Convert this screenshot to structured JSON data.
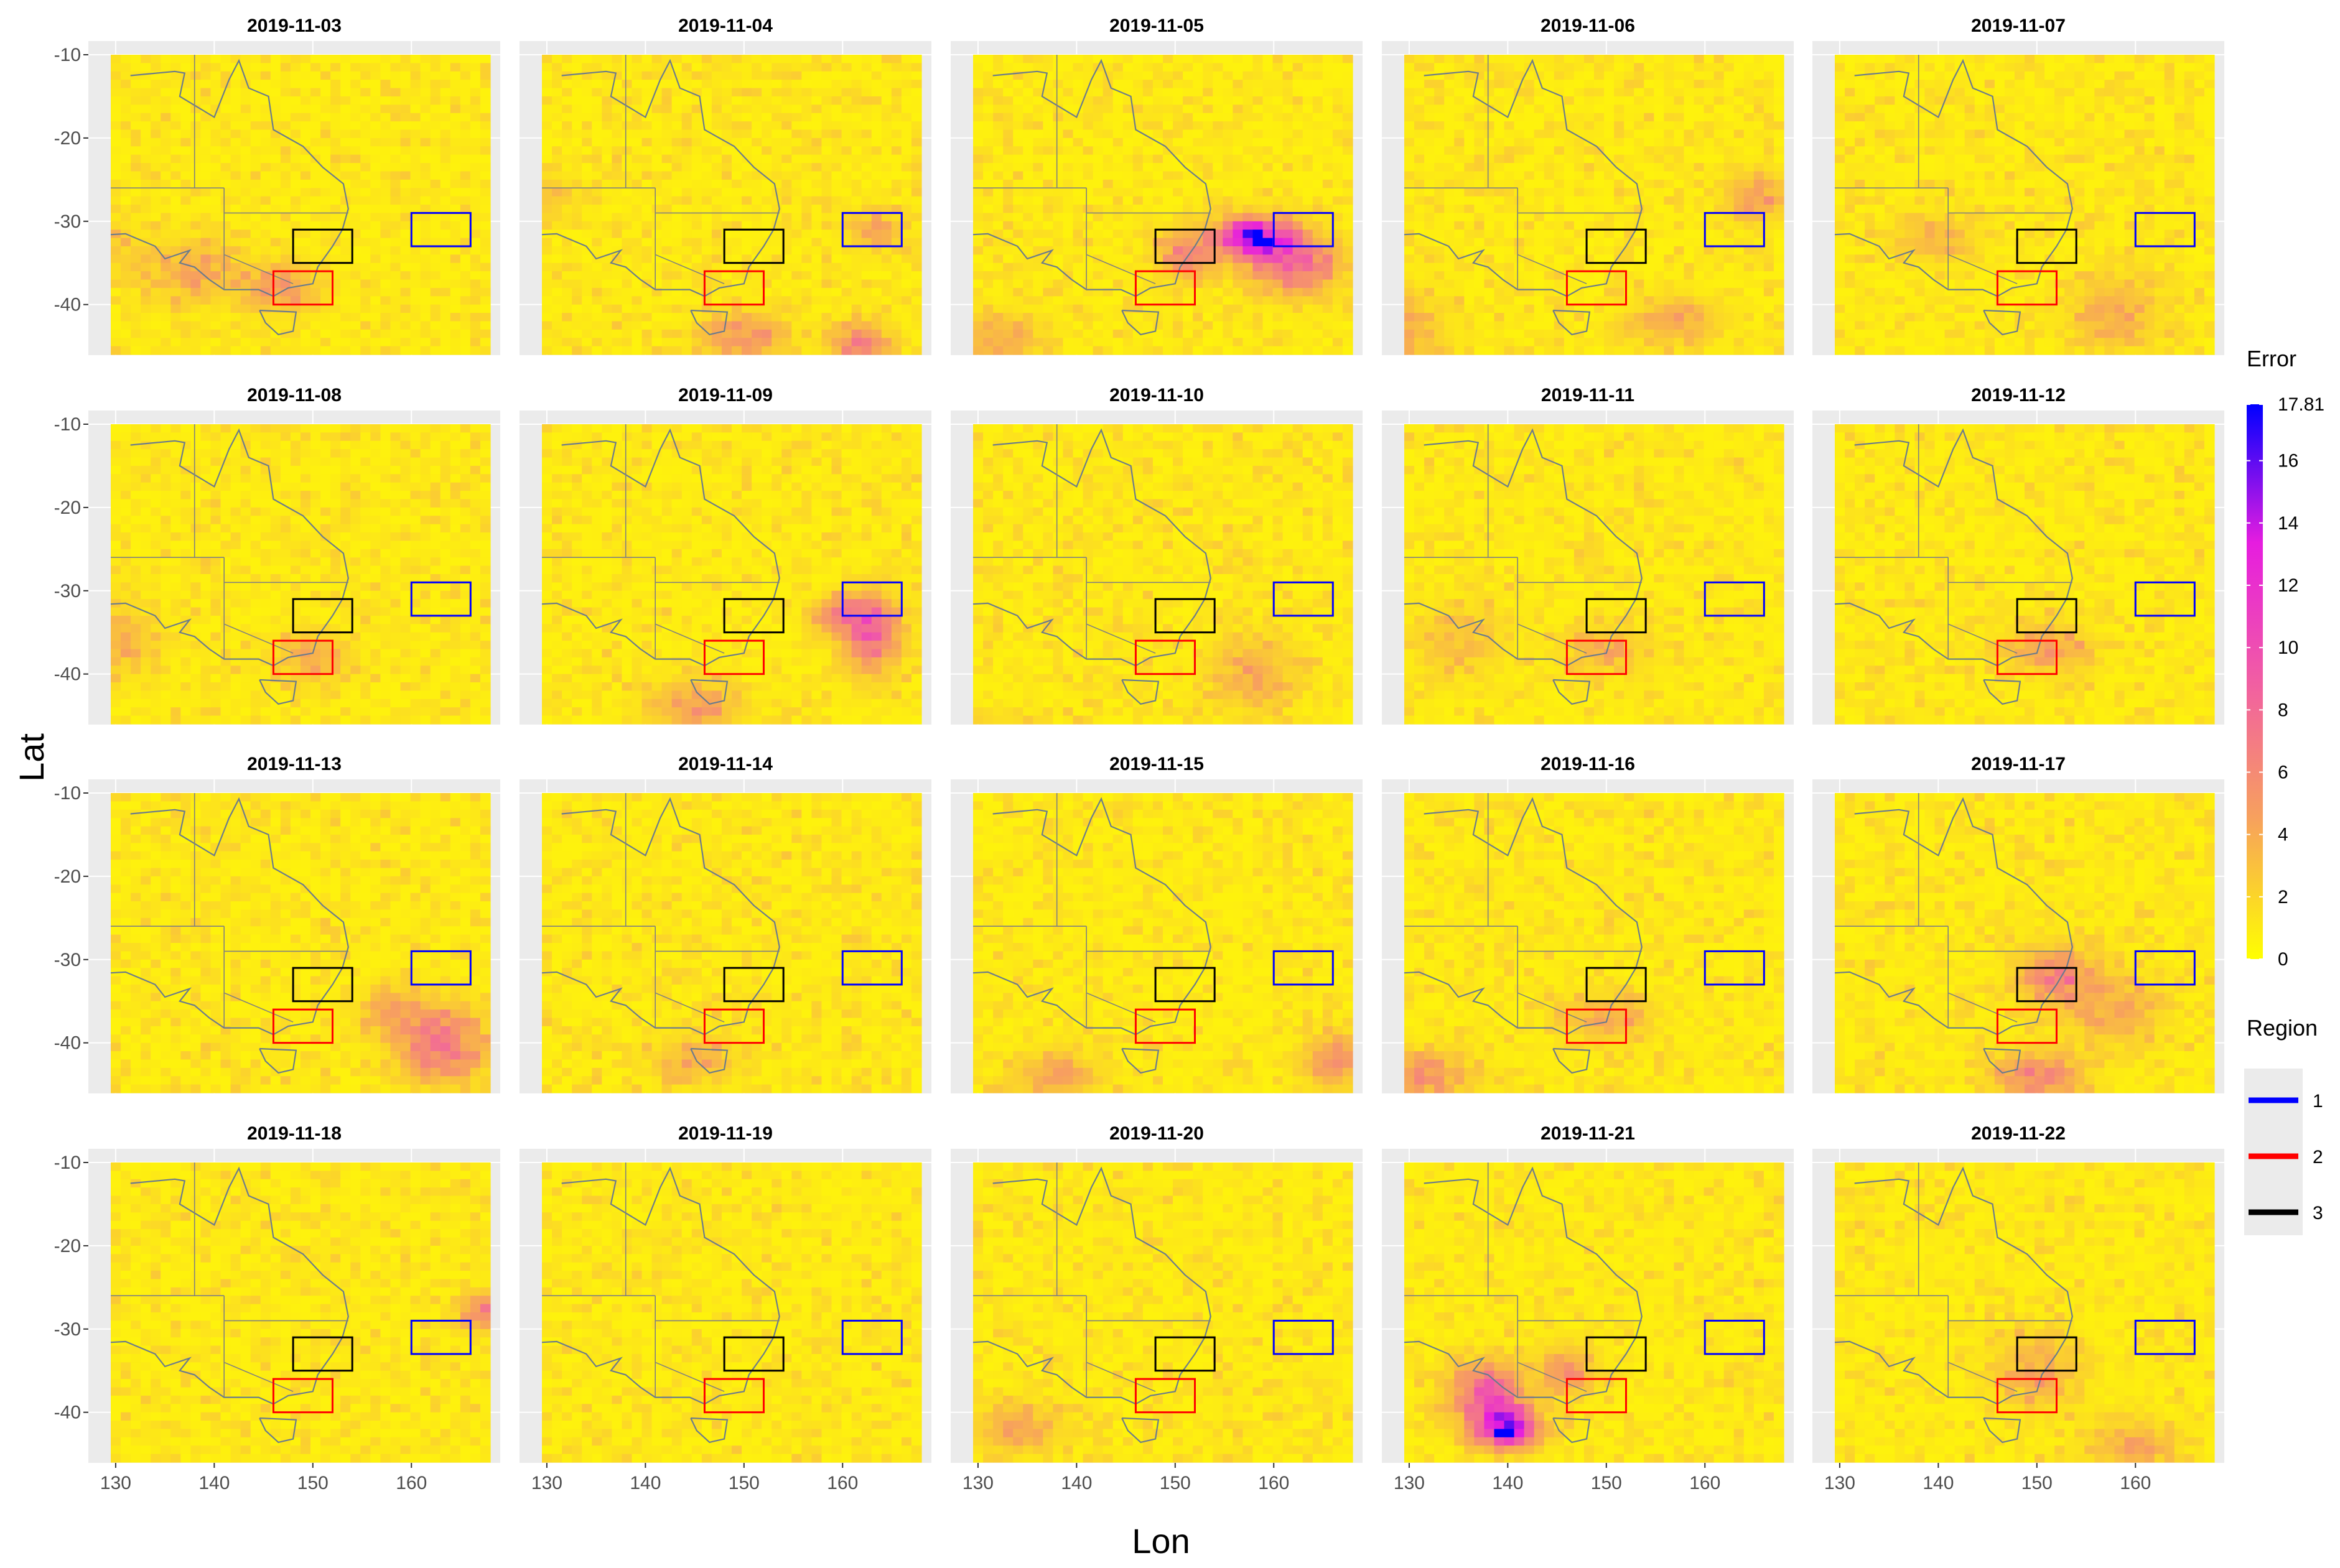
{
  "chart_data": {
    "type": "heatmap",
    "xlabel": "Lon",
    "ylabel": "Lat",
    "panels": [
      {
        "title": "2019-11-03",
        "hotspots": [
          [
            138,
            -36,
            3.5,
            2.5,
            3
          ],
          [
            147,
            -38,
            2.5,
            2,
            4
          ],
          [
            128,
            -33,
            3,
            2,
            2
          ]
        ]
      },
      {
        "title": "2019-11-04",
        "hotspots": [
          [
            128,
            -27,
            3,
            1.5,
            3
          ],
          [
            163,
            -31,
            2,
            1.5,
            3
          ],
          [
            150,
            -44,
            3,
            2,
            4
          ],
          [
            162,
            -45,
            2,
            2,
            5
          ]
        ]
      },
      {
        "title": "2019-11-05",
        "hotspots": [
          [
            158,
            -32,
            2.5,
            1.6,
            14
          ],
          [
            162,
            -35,
            3,
            2.5,
            7
          ],
          [
            151,
            -34,
            2,
            2,
            5
          ],
          [
            132,
            -44,
            3,
            2,
            3
          ]
        ]
      },
      {
        "title": "2019-11-06",
        "hotspots": [
          [
            165,
            -27,
            2,
            2,
            4
          ],
          [
            129,
            -43,
            3,
            3,
            3
          ],
          [
            157,
            -42,
            3,
            2,
            3
          ]
        ]
      },
      {
        "title": "2019-11-07",
        "hotspots": [
          [
            140,
            -32,
            3,
            2,
            2.5
          ],
          [
            158,
            -41,
            3,
            3,
            3
          ]
        ]
      },
      {
        "title": "2019-11-08",
        "hotspots": [
          [
            150,
            -38,
            2.5,
            2,
            3
          ],
          [
            130,
            -36,
            3,
            3,
            2.5
          ]
        ]
      },
      {
        "title": "2019-11-09",
        "hotspots": [
          [
            163,
            -35,
            2,
            3,
            7
          ],
          [
            160,
            -33,
            2,
            1.5,
            5
          ],
          [
            145,
            -44,
            3,
            2,
            4
          ]
        ]
      },
      {
        "title": "2019-11-10",
        "hotspots": [
          [
            158,
            -40,
            3,
            3,
            3
          ]
        ]
      },
      {
        "title": "2019-11-11",
        "hotspots": [
          [
            150,
            -37,
            3,
            2,
            2.5
          ],
          [
            135,
            -36,
            3,
            3,
            2
          ]
        ]
      },
      {
        "title": "2019-11-12",
        "hotspots": [
          [
            151,
            -37,
            3,
            2,
            3.5
          ]
        ]
      },
      {
        "title": "2019-11-13",
        "hotspots": [
          [
            163,
            -40,
            3,
            3,
            6
          ],
          [
            158,
            -36,
            2,
            2,
            3
          ]
        ]
      },
      {
        "title": "2019-11-14",
        "hotspots": [
          [
            145,
            -42,
            3,
            2,
            2.5
          ]
        ]
      },
      {
        "title": "2019-11-15",
        "hotspots": [
          [
            138,
            -44,
            3,
            2,
            3
          ],
          [
            166,
            -42,
            2,
            2,
            5
          ]
        ]
      },
      {
        "title": "2019-11-16",
        "hotspots": [
          [
            132,
            -44,
            3,
            2,
            4
          ],
          [
            150,
            -37,
            3,
            2,
            3
          ]
        ]
      },
      {
        "title": "2019-11-17",
        "hotspots": [
          [
            152,
            -32,
            2.5,
            2.5,
            5
          ],
          [
            158,
            -36,
            3,
            3,
            3
          ],
          [
            150,
            -44,
            3,
            2,
            5
          ]
        ]
      },
      {
        "title": "2019-11-18",
        "hotspots": [
          [
            167,
            -28,
            1.5,
            1.5,
            5
          ]
        ]
      },
      {
        "title": "2019-11-19",
        "hotspots": []
      },
      {
        "title": "2019-11-20",
        "hotspots": [
          [
            134,
            -42,
            3,
            2,
            3
          ]
        ]
      },
      {
        "title": "2019-11-21",
        "hotspots": [
          [
            140,
            -42,
            2,
            1.5,
            15
          ],
          [
            138,
            -38,
            2.5,
            2.5,
            8
          ],
          [
            146,
            -35,
            2,
            2,
            4
          ]
        ]
      },
      {
        "title": "2019-11-22",
        "hotspots": [
          [
            150,
            -35,
            3,
            3,
            3
          ],
          [
            160,
            -44,
            3,
            2,
            3
          ]
        ]
      }
    ],
    "x_ticks": [
      130,
      140,
      150,
      160
    ],
    "y_ticks": [
      -10,
      -20,
      -30,
      -40
    ],
    "xlim": [
      129.5,
      168
    ],
    "ylim": [
      -46,
      -10
    ],
    "regions": [
      {
        "name": "1",
        "color": "#0000ff",
        "lon": [
          160,
          166
        ],
        "lat": [
          -33,
          -29
        ]
      },
      {
        "name": "2",
        "color": "#ff0000",
        "lon": [
          146,
          152
        ],
        "lat": [
          -40,
          -36
        ]
      },
      {
        "name": "3",
        "color": "#000000",
        "lon": [
          148,
          154
        ],
        "lat": [
          -35,
          -31
        ]
      }
    ],
    "colorbar": {
      "title": "Error",
      "max": 17.81,
      "tick_values": [
        0,
        2,
        4,
        6,
        8,
        10,
        12,
        14,
        16,
        17.81
      ],
      "tick_labels": [
        "0",
        "2",
        "4",
        "6",
        "8",
        "10",
        "12",
        "14",
        "16",
        "17.81"
      ],
      "colors": [
        "#ffff00",
        "#f7a25c",
        "#f15ea3",
        "#e61ddf",
        "#0000ff"
      ]
    },
    "region_legend_title": "Region",
    "background_grid": true
  }
}
